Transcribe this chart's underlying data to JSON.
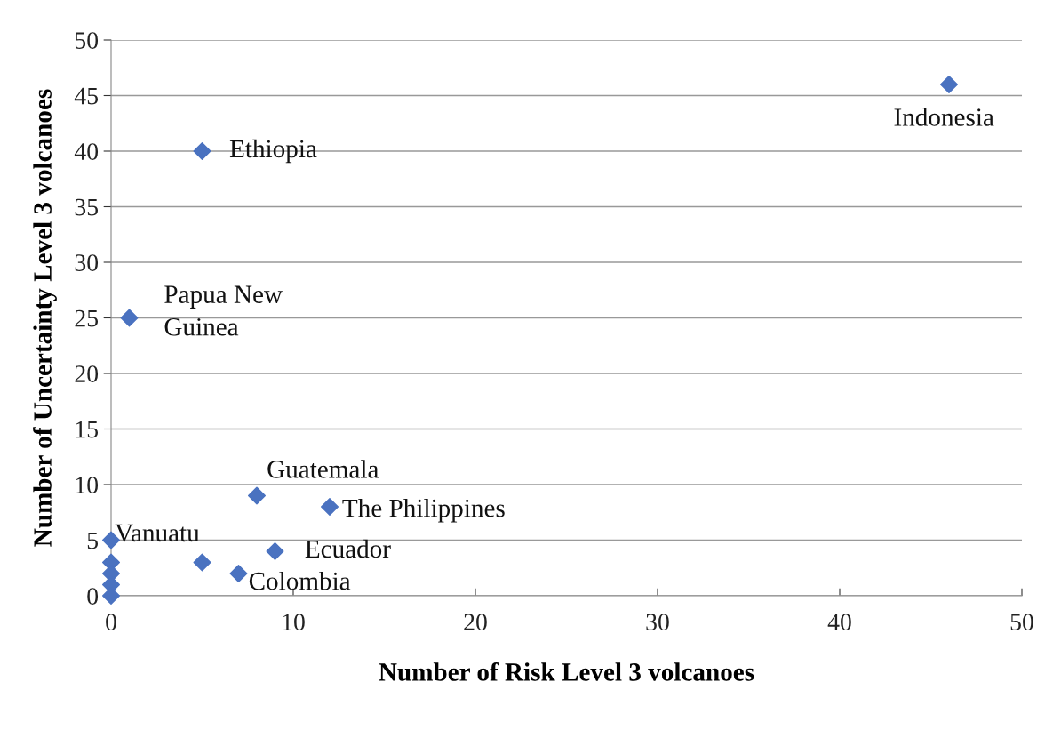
{
  "chart_data": {
    "type": "scatter",
    "xlabel": "Number of Risk Level 3 volcanoes",
    "ylabel": "Number of Uncertainty Level 3 volcanoes",
    "x": [
      46,
      5,
      1,
      8,
      12,
      0,
      9,
      5,
      7,
      0,
      0,
      0,
      0
    ],
    "series": [
      {
        "color": "#4a72c0",
        "values": [
          46,
          40,
          25,
          9,
          8,
          5,
          4,
          3,
          2,
          3,
          2,
          1,
          0
        ]
      }
    ],
    "marker": "diamond",
    "grid": "y",
    "legend": false,
    "xlim": [
      0,
      50
    ],
    "xticks": [
      0,
      10,
      20,
      30,
      40,
      50
    ],
    "ylim": [
      0,
      50
    ],
    "yticks": [
      0,
      5,
      10,
      15,
      20,
      25,
      30,
      35,
      40,
      45,
      50
    ],
    "annotations": [
      {
        "text": "Indonesia",
        "x": 46,
        "y": 46
      },
      {
        "text": "Ethiopia",
        "x": 5,
        "y": 40
      },
      {
        "text": "Papua New\nGuinea",
        "x": 1,
        "y": 25
      },
      {
        "text": "Guatemala",
        "x": 8,
        "y": 9
      },
      {
        "text": "The Philippines",
        "x": 12,
        "y": 8
      },
      {
        "text": "Vanuatu",
        "x": 0,
        "y": 5
      },
      {
        "text": "Ecuador",
        "x": 9,
        "y": 4
      },
      {
        "text": "Colombia",
        "x": 7,
        "y": 2
      }
    ]
  }
}
